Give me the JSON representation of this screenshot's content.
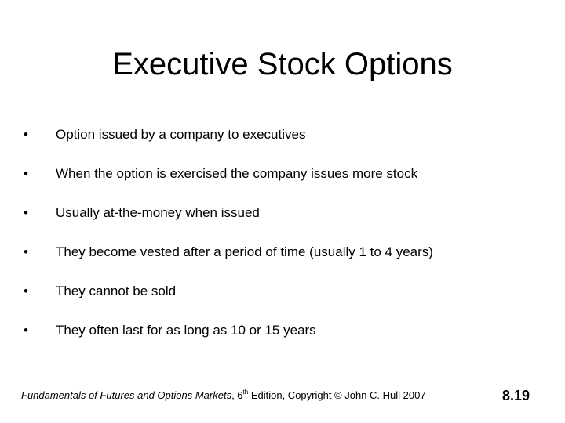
{
  "title": "Executive Stock Options",
  "bullets": [
    "Option issued by a company to executives",
    "When the option is exercised the company issues more stock",
    "Usually at-the-money when issued",
    "They become vested after a period of time (usually 1 to 4 years)",
    "They cannot be sold",
    "They often last for as long as 10 or 15 years"
  ],
  "bullet_glyph": "•",
  "footer": {
    "book_title": "Fundamentals of Futures and Options Markets",
    "edition_num": ", 6",
    "edition_sup": "th",
    "rest": " Edition, Copyright © John  C. Hull 2007"
  },
  "page_number": "8.19"
}
